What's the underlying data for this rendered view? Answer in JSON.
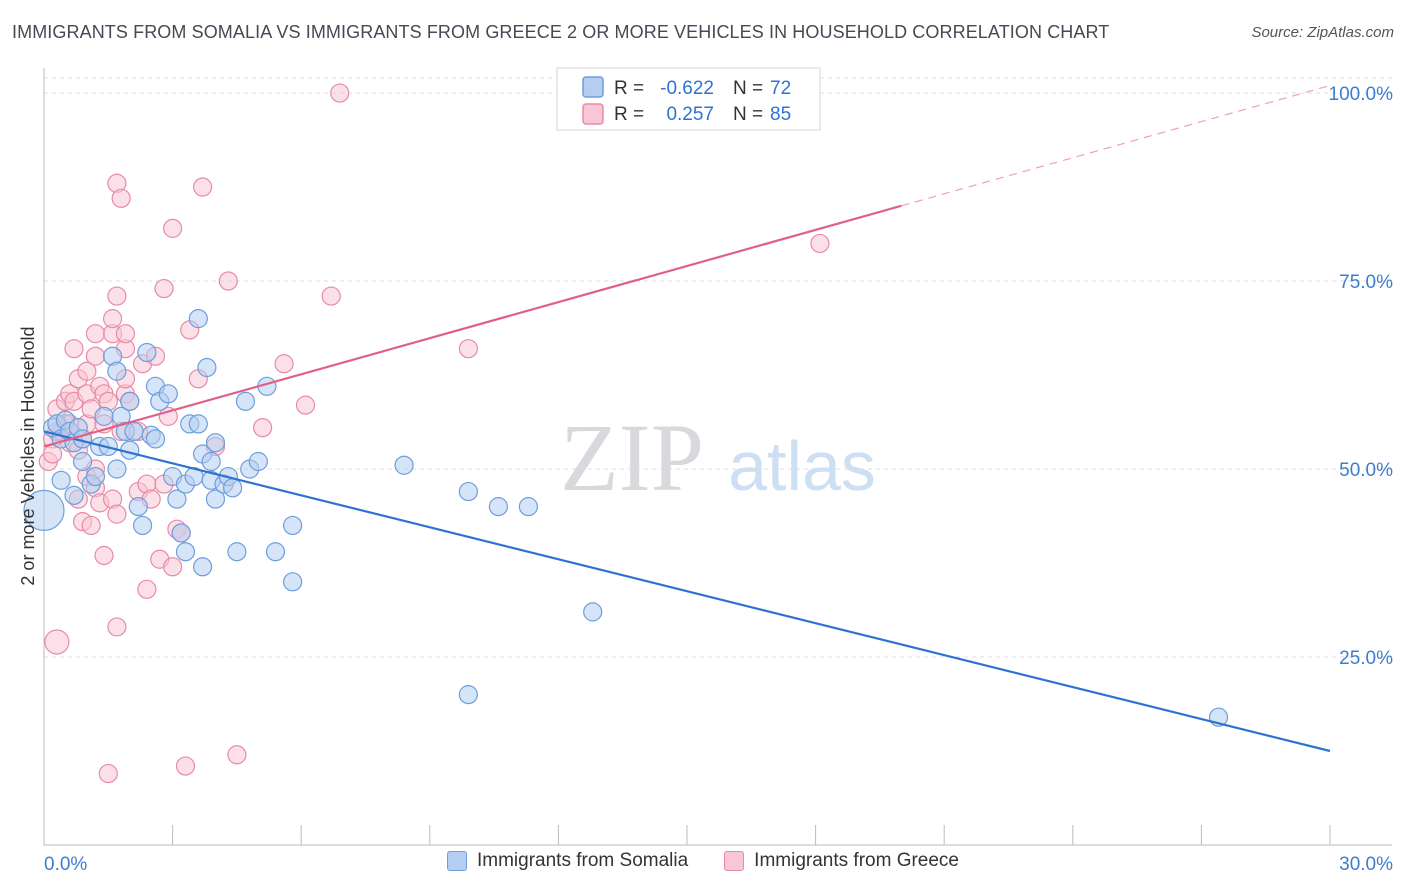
{
  "title": "IMMIGRANTS FROM SOMALIA VS IMMIGRANTS FROM GREECE 2 OR MORE VEHICLES IN HOUSEHOLD CORRELATION CHART",
  "source": "Source: ZipAtlas.com",
  "watermark": {
    "zip": "ZIP",
    "atlas": "atlas"
  },
  "legend_top": {
    "r_label": "R =",
    "n_label": "N =",
    "rows": [
      {
        "r": "-0.622",
        "n": "72"
      },
      {
        "r": "0.257",
        "n": "85"
      }
    ]
  },
  "legend_bottom": [
    "Immigrants from Somalia",
    "Immigrants from Greece"
  ],
  "colors": {
    "blue_fill": "#b5cdf0",
    "blue_stroke": "#6c9ede",
    "blue_line": "#2e73d2",
    "pink_fill": "#f8c6d4",
    "pink_stroke": "#e88aa9",
    "pink_line": "#e0608a",
    "axis_text": "#3d7dd0",
    "grid": "#dddddd"
  },
  "chart_data": {
    "type": "scatter",
    "title": "IMMIGRANTS FROM SOMALIA VS IMMIGRANTS FROM GREECE 2 OR MORE VEHICLES IN HOUSEHOLD CORRELATION CHART",
    "xlabel": "",
    "ylabel": "2 or more Vehicles in Household",
    "xlim": [
      0,
      30
    ],
    "ylim": [
      0,
      102
    ],
    "x_tick_labels": [
      "0.0%",
      "30.0%"
    ],
    "y_ticks": [
      25,
      50,
      75,
      100
    ],
    "y_tick_labels": [
      "25.0%",
      "50.0%",
      "75.0%",
      "100.0%"
    ],
    "grid": true,
    "series": [
      {
        "name": "Immigrants from Somalia",
        "r": -0.622,
        "n": 72,
        "trend": {
          "x0": 0,
          "y0": 55,
          "x1": 30,
          "y1": 12.5
        },
        "points": [
          [
            0.0,
            44.5,
            20
          ],
          [
            0.2,
            55.5,
            9
          ],
          [
            0.3,
            56,
            9
          ],
          [
            0.4,
            54,
            9
          ],
          [
            0.4,
            48.5,
            9
          ],
          [
            0.5,
            56.5,
            9
          ],
          [
            0.6,
            55,
            9
          ],
          [
            0.7,
            53.5,
            9
          ],
          [
            0.7,
            46.5,
            9
          ],
          [
            0.8,
            55.5,
            9
          ],
          [
            0.9,
            51,
            9
          ],
          [
            0.9,
            54,
            9
          ],
          [
            1.1,
            48,
            9
          ],
          [
            1.2,
            49,
            9
          ],
          [
            1.3,
            53,
            9
          ],
          [
            1.4,
            57,
            9
          ],
          [
            1.5,
            53,
            9
          ],
          [
            1.6,
            65,
            9
          ],
          [
            1.7,
            50,
            9
          ],
          [
            1.7,
            63,
            9
          ],
          [
            1.8,
            57,
            9
          ],
          [
            1.9,
            55,
            9
          ],
          [
            2.0,
            52.5,
            9
          ],
          [
            2.0,
            59,
            9
          ],
          [
            2.1,
            55,
            9
          ],
          [
            2.2,
            45,
            9
          ],
          [
            2.3,
            42.5,
            9
          ],
          [
            2.4,
            65.5,
            9
          ],
          [
            2.5,
            54.5,
            9
          ],
          [
            2.6,
            54,
            9
          ],
          [
            2.6,
            61,
            9
          ],
          [
            2.7,
            59,
            9
          ],
          [
            2.9,
            60,
            9
          ],
          [
            3.0,
            49,
            9
          ],
          [
            3.1,
            46,
            9
          ],
          [
            3.2,
            41.5,
            9
          ],
          [
            3.3,
            39,
            9
          ],
          [
            3.3,
            48,
            9
          ],
          [
            3.4,
            56,
            9
          ],
          [
            3.5,
            49,
            9
          ],
          [
            3.6,
            56,
            9
          ],
          [
            3.6,
            70,
            9
          ],
          [
            3.7,
            52,
            9
          ],
          [
            3.7,
            37,
            9
          ],
          [
            3.8,
            63.5,
            9
          ],
          [
            3.9,
            51,
            9
          ],
          [
            3.9,
            48.5,
            9
          ],
          [
            4.0,
            46,
            9
          ],
          [
            4.0,
            53.5,
            9
          ],
          [
            4.2,
            48,
            9
          ],
          [
            4.3,
            49,
            9
          ],
          [
            4.4,
            47.5,
            9
          ],
          [
            4.5,
            39,
            9
          ],
          [
            4.7,
            59,
            9
          ],
          [
            4.8,
            50,
            9
          ],
          [
            5.0,
            51,
            9
          ],
          [
            5.2,
            61,
            9
          ],
          [
            5.4,
            39,
            9
          ],
          [
            5.8,
            42.5,
            9
          ],
          [
            5.8,
            35,
            9
          ],
          [
            8.4,
            50.5,
            9
          ],
          [
            9.9,
            20,
            9
          ],
          [
            9.9,
            47,
            9
          ],
          [
            10.6,
            45,
            9
          ],
          [
            11.3,
            45,
            9
          ],
          [
            12.8,
            31,
            9
          ],
          [
            27.4,
            17,
            9
          ]
        ]
      },
      {
        "name": "Immigrants from Greece",
        "r": 0.257,
        "n": 85,
        "trend": {
          "x0": 0,
          "y0": 53,
          "x1": 20,
          "y1": 85,
          "dash_x1": 30,
          "dash_y1": 101
        },
        "points": [
          [
            0.1,
            51,
            9
          ],
          [
            0.2,
            54,
            9
          ],
          [
            0.2,
            52,
            9
          ],
          [
            0.3,
            55,
            9
          ],
          [
            0.3,
            58,
            9
          ],
          [
            0.3,
            27,
            12
          ],
          [
            0.4,
            55,
            9
          ],
          [
            0.5,
            56,
            9
          ],
          [
            0.5,
            59,
            9
          ],
          [
            0.6,
            56,
            9
          ],
          [
            0.6,
            60,
            9
          ],
          [
            0.6,
            53.5,
            9
          ],
          [
            0.7,
            59,
            9
          ],
          [
            0.7,
            66,
            9
          ],
          [
            0.8,
            52.5,
            9
          ],
          [
            0.8,
            62,
            9
          ],
          [
            0.8,
            46,
            9
          ],
          [
            0.9,
            43,
            9
          ],
          [
            0.9,
            54,
            9
          ],
          [
            1.0,
            49,
            9
          ],
          [
            1.0,
            56,
            9
          ],
          [
            1.0,
            63,
            9
          ],
          [
            1.0,
            60,
            9
          ],
          [
            1.1,
            42.5,
            9
          ],
          [
            1.1,
            58,
            9
          ],
          [
            1.2,
            50,
            9
          ],
          [
            1.2,
            47.5,
            9
          ],
          [
            1.2,
            65,
            9
          ],
          [
            1.2,
            68,
            9
          ],
          [
            1.3,
            61,
            9
          ],
          [
            1.3,
            45.5,
            9
          ],
          [
            1.4,
            56,
            9
          ],
          [
            1.4,
            60,
            9
          ],
          [
            1.4,
            38.5,
            9
          ],
          [
            1.5,
            59,
            9
          ],
          [
            1.5,
            9.5,
            9
          ],
          [
            1.6,
            46,
            9
          ],
          [
            1.6,
            68,
            9
          ],
          [
            1.6,
            70,
            9
          ],
          [
            1.7,
            88,
            9
          ],
          [
            1.7,
            73,
            9
          ],
          [
            1.7,
            44,
            9
          ],
          [
            1.7,
            29,
            9
          ],
          [
            1.8,
            86,
            9
          ],
          [
            1.8,
            55,
            9
          ],
          [
            1.9,
            60,
            9
          ],
          [
            1.9,
            62,
            9
          ],
          [
            1.9,
            66,
            9
          ],
          [
            1.9,
            68,
            9
          ],
          [
            2.0,
            59,
            9
          ],
          [
            2.2,
            47,
            9
          ],
          [
            2.2,
            55,
            9
          ],
          [
            2.3,
            64,
            9
          ],
          [
            2.4,
            34,
            9
          ],
          [
            2.4,
            48,
            9
          ],
          [
            2.5,
            46,
            9
          ],
          [
            2.6,
            65,
            9
          ],
          [
            2.7,
            38,
            9
          ],
          [
            2.8,
            74,
            9
          ],
          [
            2.8,
            48,
            9
          ],
          [
            2.9,
            57,
            9
          ],
          [
            3.0,
            37,
            9
          ],
          [
            3.0,
            82,
            9
          ],
          [
            3.1,
            42,
            9
          ],
          [
            3.2,
            41.5,
            9
          ],
          [
            3.3,
            10.5,
            9
          ],
          [
            3.4,
            68.5,
            9
          ],
          [
            3.6,
            62,
            9
          ],
          [
            3.7,
            87.5,
            9
          ],
          [
            4.0,
            53,
            9
          ],
          [
            4.3,
            75,
            9
          ],
          [
            4.5,
            12,
            9
          ],
          [
            5.1,
            55.5,
            9
          ],
          [
            5.6,
            64,
            9
          ],
          [
            6.1,
            58.5,
            9
          ],
          [
            6.7,
            73,
            9
          ],
          [
            6.9,
            100,
            9
          ],
          [
            9.9,
            66,
            9
          ],
          [
            18.1,
            80,
            9
          ]
        ]
      }
    ]
  }
}
